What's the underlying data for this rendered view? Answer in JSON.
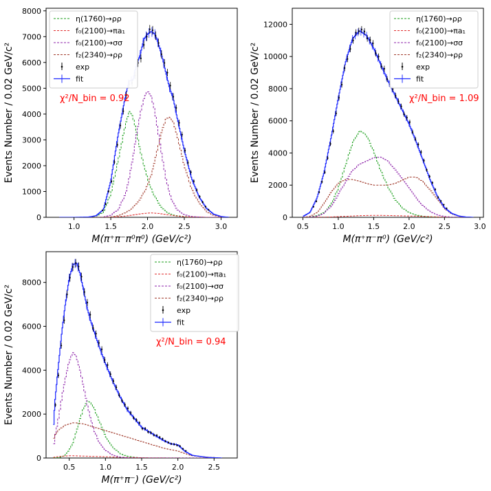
{
  "colors": {
    "eta": "#1a9e1a",
    "pia1": "#e02b2b",
    "sigma": "#8b1fa8",
    "f2": "#a0392a",
    "fit": "#1f2bff",
    "exp": "#000000",
    "chi": "#ff0000"
  },
  "chart_data": [
    {
      "type": "line",
      "xlabel": "M(π⁺π⁻π⁰π⁰) (GeV/c²)",
      "ylabel": "Events Number / 0.02 GeV/c²",
      "xlim": [
        0.62,
        3.22
      ],
      "ylim": [
        0,
        8100
      ],
      "xticks": [
        1.0,
        1.5,
        2.0,
        2.5,
        3.0
      ],
      "xtick_labels": [
        "1.0",
        "1.5",
        "2.0",
        "2.5",
        "3.0"
      ],
      "yticks": [
        0,
        1000,
        2000,
        3000,
        4000,
        5000,
        6000,
        7000,
        8000
      ],
      "ytick_labels": [
        "0",
        "1000",
        "2000",
        "3000",
        "4000",
        "5000",
        "6000",
        "7000",
        "8000"
      ],
      "annotation": "χ²/N_bin = 0.92",
      "legend": [
        "η(1760)→ρρ",
        "f₀(2100)→πa₁",
        "f₀(2100)→σσ",
        "f₂(2340)→ρρ",
        "exp",
        "fit"
      ],
      "x": [
        0.8,
        1.0,
        1.2,
        1.3,
        1.4,
        1.5,
        1.6,
        1.7,
        1.75,
        1.8,
        1.85,
        1.9,
        1.95,
        2.0,
        2.05,
        2.1,
        2.15,
        2.2,
        2.25,
        2.3,
        2.35,
        2.4,
        2.5,
        2.6,
        2.7,
        2.8,
        2.9,
        3.0,
        3.1
      ],
      "series": [
        {
          "name": "fit",
          "color_key": "fit",
          "values": [
            0,
            0,
            10,
            60,
            300,
            1400,
            3200,
            4700,
            5300,
            5300,
            5900,
            6300,
            6900,
            7100,
            7200,
            7100,
            6700,
            6200,
            5600,
            5000,
            4600,
            3900,
            2600,
            1500,
            800,
            350,
            120,
            30,
            0
          ]
        },
        {
          "name": "η(1760)→ρρ",
          "color_key": "eta",
          "values": [
            0,
            0,
            5,
            40,
            200,
            900,
            2200,
            3600,
            4100,
            3900,
            3300,
            2600,
            2000,
            1500,
            1100,
            800,
            550,
            350,
            220,
            140,
            90,
            60,
            25,
            10,
            5,
            0,
            0,
            0,
            0
          ]
        },
        {
          "name": "f₀(2100)→πa₁",
          "color_key": "pia1",
          "values": [
            0,
            0,
            0,
            0,
            0,
            5,
            20,
            50,
            70,
            90,
            110,
            130,
            150,
            160,
            170,
            160,
            150,
            130,
            110,
            90,
            70,
            50,
            25,
            10,
            5,
            0,
            0,
            0,
            0
          ]
        },
        {
          "name": "f₀(2100)→σσ",
          "color_key": "sigma",
          "values": [
            0,
            0,
            0,
            0,
            10,
            80,
            300,
            900,
            1500,
            2300,
            3200,
            4000,
            4600,
            4900,
            4700,
            4100,
            3200,
            2300,
            1500,
            900,
            550,
            300,
            100,
            30,
            10,
            0,
            0,
            0,
            0
          ]
        },
        {
          "name": "f₂(2340)→ρρ",
          "color_key": "f2",
          "values": [
            0,
            0,
            0,
            0,
            0,
            10,
            60,
            180,
            260,
            380,
            520,
            700,
            950,
            1250,
            1650,
            2200,
            2800,
            3400,
            3800,
            3900,
            3700,
            3200,
            2000,
            1100,
            550,
            220,
            70,
            20,
            0
          ]
        }
      ]
    },
    {
      "type": "line",
      "xlabel": "M(π⁺π⁻π⁰) (GeV/c²)",
      "ylabel": "Events Number / 0.02 GeV/c²",
      "xlim": [
        0.35,
        3.05
      ],
      "ylim": [
        0,
        13000
      ],
      "xticks": [
        0.5,
        1.0,
        1.5,
        2.0,
        2.5,
        3.0
      ],
      "xtick_labels": [
        "0.5",
        "1.0",
        "1.5",
        "2.0",
        "2.5",
        "3.0"
      ],
      "yticks": [
        0,
        2000,
        4000,
        6000,
        8000,
        10000,
        12000
      ],
      "ytick_labels": [
        "0",
        "2000",
        "4000",
        "6000",
        "8000",
        "10000",
        "12000"
      ],
      "annotation": "χ²/N_bin = 1.09",
      "legend": [
        "η(1760)→ρρ",
        "f₀(2100)→πa₁",
        "f₀(2100)→σσ",
        "f₂(2340)→ρρ",
        "exp",
        "fit"
      ],
      "x": [
        0.5,
        0.6,
        0.7,
        0.8,
        0.9,
        1.0,
        1.1,
        1.2,
        1.3,
        1.4,
        1.5,
        1.6,
        1.7,
        1.8,
        1.9,
        2.0,
        2.1,
        2.2,
        2.3,
        2.4,
        2.5,
        2.6,
        2.7,
        2.8,
        2.9
      ],
      "series": [
        {
          "name": "fit",
          "color_key": "fit",
          "values": [
            50,
            300,
            1200,
            2800,
            5000,
            7400,
            9600,
            11100,
            11600,
            11300,
            10500,
            9500,
            8500,
            7600,
            6700,
            5800,
            4700,
            3500,
            2300,
            1300,
            600,
            250,
            80,
            20,
            0
          ]
        },
        {
          "name": "η(1760)→ρρ",
          "color_key": "eta",
          "values": [
            0,
            20,
            100,
            300,
            800,
            1800,
            3200,
            4600,
            5400,
            5100,
            4100,
            2900,
            1900,
            1100,
            600,
            300,
            140,
            60,
            20,
            5,
            0,
            0,
            0,
            0,
            0
          ]
        },
        {
          "name": "f₀(2100)→πa₁",
          "color_key": "pia1",
          "values": [
            0,
            0,
            5,
            10,
            20,
            40,
            60,
            80,
            100,
            110,
            115,
            115,
            110,
            100,
            90,
            80,
            70,
            55,
            40,
            25,
            10,
            5,
            0,
            0,
            0
          ]
        },
        {
          "name": "f₀(2100)→σσ",
          "color_key": "sigma",
          "values": [
            0,
            10,
            60,
            250,
            700,
            1400,
            2200,
            2900,
            3300,
            3500,
            3700,
            3750,
            3500,
            3000,
            2400,
            1800,
            1200,
            700,
            350,
            150,
            50,
            15,
            5,
            0,
            0
          ]
        },
        {
          "name": "f₂(2340)→ρρ",
          "color_key": "f2",
          "values": [
            0,
            50,
            300,
            900,
            1600,
            2100,
            2350,
            2350,
            2250,
            2100,
            2000,
            2000,
            2000,
            2100,
            2300,
            2500,
            2500,
            2200,
            1700,
            1100,
            550,
            220,
            70,
            20,
            0
          ]
        }
      ]
    },
    {
      "type": "line",
      "xlabel": "M(π⁺π⁻) (GeV/c²)",
      "ylabel": "Events Number / 0.02 GeV/c²",
      "xlim": [
        0.18,
        2.82
      ],
      "ylim": [
        0,
        9400
      ],
      "xticks": [
        0.5,
        1.0,
        1.5,
        2.0,
        2.5
      ],
      "xtick_labels": [
        "0.5",
        "1.0",
        "1.5",
        "2.0",
        "2.5"
      ],
      "yticks": [
        0,
        2000,
        4000,
        6000,
        8000
      ],
      "ytick_labels": [
        "0",
        "2000",
        "4000",
        "6000",
        "8000"
      ],
      "annotation": "χ²/N_bin = 0.94",
      "legend": [
        "η(1760)→ρρ",
        "f₀(2100)→πa₁",
        "f₀(2100)→σσ",
        "f₂(2340)→ρρ",
        "exp",
        "fit"
      ],
      "x": [
        0.28,
        0.3,
        0.35,
        0.4,
        0.45,
        0.5,
        0.55,
        0.6,
        0.65,
        0.7,
        0.75,
        0.8,
        0.85,
        0.9,
        1.0,
        1.1,
        1.2,
        1.3,
        1.4,
        1.5,
        1.6,
        1.7,
        1.8,
        1.9,
        2.0,
        2.1,
        2.2,
        2.4,
        2.6
      ],
      "series": [
        {
          "name": "fit",
          "color_key": "fit",
          "values": [
            1200,
            2500,
            4200,
            5800,
            7100,
            8200,
            8800,
            8900,
            8400,
            7600,
            6800,
            6200,
            5700,
            5200,
            4300,
            3500,
            2800,
            2200,
            1800,
            1400,
            1200,
            1000,
            800,
            650,
            600,
            300,
            120,
            30,
            0
          ]
        },
        {
          "name": "η(1760)→ρρ",
          "color_key": "eta",
          "values": [
            0,
            5,
            20,
            60,
            150,
            350,
            700,
            1200,
            1800,
            2300,
            2600,
            2500,
            2200,
            1800,
            1000,
            500,
            200,
            80,
            30,
            10,
            0,
            0,
            0,
            0,
            0,
            0,
            0,
            0,
            0
          ]
        },
        {
          "name": "f₀(2100)→πa₁",
          "color_key": "pia1",
          "values": [
            20,
            40,
            60,
            80,
            90,
            100,
            100,
            95,
            90,
            85,
            80,
            75,
            70,
            65,
            55,
            45,
            35,
            25,
            20,
            15,
            10,
            8,
            5,
            3,
            2,
            0,
            0,
            0,
            0
          ]
        },
        {
          "name": "f₀(2100)→σσ",
          "color_key": "sigma",
          "values": [
            400,
            900,
            1800,
            2800,
            3700,
            4400,
            4800,
            4600,
            4000,
            3200,
            2400,
            1700,
            1200,
            800,
            350,
            130,
            40,
            10,
            0,
            0,
            0,
            0,
            0,
            0,
            0,
            0,
            0,
            0,
            0
          ]
        },
        {
          "name": "f₂(2340)→ρρ",
          "color_key": "f2",
          "values": [
            800,
            1000,
            1250,
            1400,
            1500,
            1550,
            1600,
            1600,
            1570,
            1550,
            1500,
            1450,
            1400,
            1350,
            1250,
            1150,
            1050,
            950,
            850,
            750,
            650,
            550,
            450,
            380,
            320,
            200,
            100,
            40,
            0
          ]
        }
      ]
    }
  ]
}
